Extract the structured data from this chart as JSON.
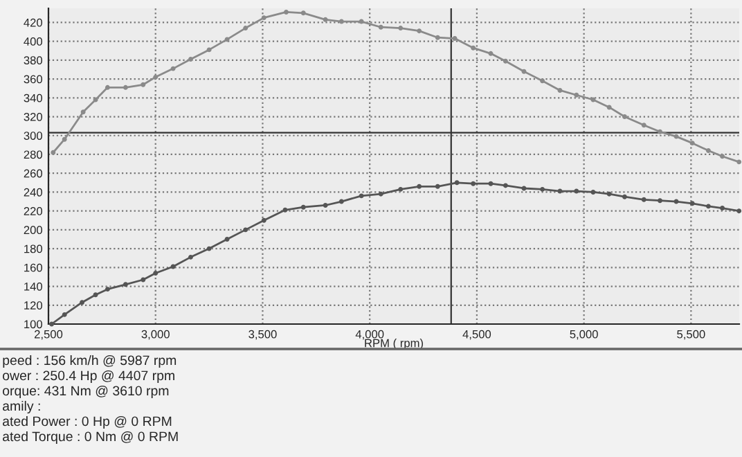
{
  "chart_data": {
    "type": "line",
    "xlabel": "RPM ( rpm)",
    "xlim": [
      2500,
      5725
    ],
    "ylim": [
      100,
      435
    ],
    "xticks": [
      {
        "value": 2500,
        "label": "2,500"
      },
      {
        "value": 3000,
        "label": "3,000"
      },
      {
        "value": 3500,
        "label": "3,500"
      },
      {
        "value": 4000,
        "label": "4,000"
      },
      {
        "value": 4500,
        "label": "4,500"
      },
      {
        "value": 5000,
        "label": "5,000"
      },
      {
        "value": 5500,
        "label": "5,500"
      }
    ],
    "yticks": [
      100,
      120,
      140,
      160,
      180,
      200,
      220,
      240,
      260,
      280,
      300,
      320,
      340,
      360,
      380,
      400,
      420
    ],
    "grid": true,
    "marker": "circle",
    "line_style": "solid",
    "series": [
      {
        "color": "#8a8a8a",
        "x": [
          2522,
          2575,
          2662,
          2720,
          2776,
          2860,
          2942,
          3000,
          3082,
          3164,
          3250,
          3334,
          3420,
          3506,
          3610,
          3690,
          3793,
          3868,
          3961,
          4052,
          4144,
          4231,
          4317,
          4397,
          4483,
          4565,
          4634,
          4720,
          4806,
          4888,
          4965,
          5043,
          5118,
          5190,
          5280,
          5355,
          5431,
          5506,
          5581,
          5646,
          5724
        ],
        "values": [
          282,
          296,
          325,
          338,
          351,
          351,
          354,
          362,
          371,
          381,
          391,
          402,
          414,
          425,
          431,
          430,
          423,
          421,
          421,
          415,
          414,
          411,
          404,
          403,
          393,
          387,
          379,
          368,
          358,
          348,
          343,
          338,
          330,
          320,
          311,
          304,
          299,
          292,
          284,
          278,
          272
        ]
      },
      {
        "color": "#555555",
        "x": [
          2515,
          2575,
          2657,
          2720,
          2776,
          2860,
          2942,
          3000,
          3082,
          3164,
          3250,
          3334,
          3420,
          3506,
          3605,
          3690,
          3793,
          3868,
          3961,
          4052,
          4144,
          4231,
          4317,
          4407,
          4483,
          4565,
          4634,
          4720,
          4806,
          4888,
          4965,
          5043,
          5118,
          5190,
          5280,
          5355,
          5431,
          5506,
          5581,
          5646,
          5724
        ],
        "values": [
          100,
          110,
          123,
          131,
          137,
          142,
          147,
          154,
          161,
          171,
          180,
          190,
          200,
          210,
          221,
          224,
          226,
          230,
          236,
          238,
          243,
          246,
          246,
          250,
          249,
          249,
          247,
          244,
          243,
          241,
          241,
          240,
          238,
          235,
          232,
          231,
          230,
          228,
          225,
          223,
          220
        ]
      }
    ],
    "ref_lines": [
      {
        "axis": "y",
        "value": 303,
        "color": "#333333"
      },
      {
        "axis": "x",
        "value": 4380,
        "color": "#333333"
      }
    ],
    "annotations": [
      "peed : 156 km/h @ 5987 rpm",
      "ower : 250.4 Hp @ 4407 rpm",
      "orque: 431 Nm @ 3610 rpm",
      "amily :",
      "ated Power : 0 Hp @ 0 RPM",
      "ated Torque : 0 Nm @ 0 RPM"
    ]
  }
}
